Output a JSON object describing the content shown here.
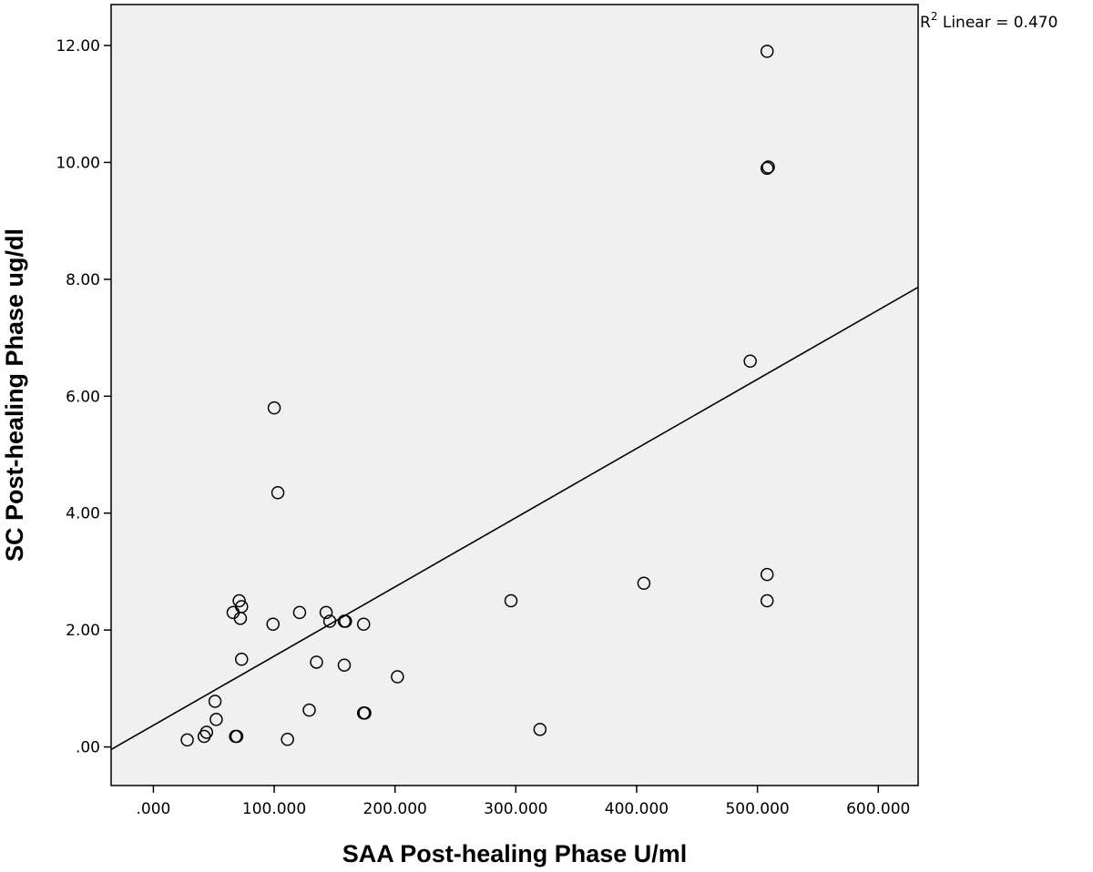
{
  "chart_data": {
    "type": "scatter",
    "title": "",
    "xlabel": "SAA Post-healing Phase U/ml",
    "ylabel": "SC Post-healing Phase ug/dl",
    "xlim": [
      -35,
      633
    ],
    "ylim": [
      -0.66,
      12.7
    ],
    "x_ticks": [
      {
        "value": 0,
        "label": ".000"
      },
      {
        "value": 100,
        "label": "100.000"
      },
      {
        "value": 200,
        "label": "200.000"
      },
      {
        "value": 300,
        "label": "300.000"
      },
      {
        "value": 400,
        "label": "400.000"
      },
      {
        "value": 500,
        "label": "500.000"
      },
      {
        "value": 600,
        "label": "600.000"
      }
    ],
    "y_ticks": [
      {
        "value": 0,
        "label": ".00"
      },
      {
        "value": 2,
        "label": "2.00"
      },
      {
        "value": 4,
        "label": "4.00"
      },
      {
        "value": 6,
        "label": "6.00"
      },
      {
        "value": 8,
        "label": "8.00"
      },
      {
        "value": 10,
        "label": "10.00"
      },
      {
        "value": 12,
        "label": "12.00"
      }
    ],
    "grid": false,
    "plot_background": "#f0f0f0",
    "points": [
      {
        "x": 28,
        "y": 0.12
      },
      {
        "x": 42,
        "y": 0.18
      },
      {
        "x": 44,
        "y": 0.25
      },
      {
        "x": 51,
        "y": 0.78
      },
      {
        "x": 52,
        "y": 0.47
      },
      {
        "x": 66,
        "y": 2.3
      },
      {
        "x": 68,
        "y": 0.18
      },
      {
        "x": 69,
        "y": 0.18
      },
      {
        "x": 71,
        "y": 2.5
      },
      {
        "x": 72,
        "y": 2.2
      },
      {
        "x": 73,
        "y": 2.4
      },
      {
        "x": 73,
        "y": 1.5
      },
      {
        "x": 99,
        "y": 2.1
      },
      {
        "x": 100,
        "y": 5.8
      },
      {
        "x": 103,
        "y": 4.35
      },
      {
        "x": 111,
        "y": 0.13
      },
      {
        "x": 121,
        "y": 2.3
      },
      {
        "x": 129,
        "y": 0.63
      },
      {
        "x": 135,
        "y": 1.45
      },
      {
        "x": 143,
        "y": 2.3
      },
      {
        "x": 146,
        "y": 2.15
      },
      {
        "x": 158,
        "y": 2.15
      },
      {
        "x": 159,
        "y": 2.15
      },
      {
        "x": 158,
        "y": 1.4
      },
      {
        "x": 174,
        "y": 2.1
      },
      {
        "x": 174,
        "y": 0.58
      },
      {
        "x": 175,
        "y": 0.58
      },
      {
        "x": 202,
        "y": 1.2
      },
      {
        "x": 296,
        "y": 2.5
      },
      {
        "x": 320,
        "y": 0.3
      },
      {
        "x": 406,
        "y": 2.8
      },
      {
        "x": 494,
        "y": 6.6
      },
      {
        "x": 508,
        "y": 11.9
      },
      {
        "x": 508,
        "y": 9.9
      },
      {
        "x": 509,
        "y": 9.92
      },
      {
        "x": 508,
        "y": 2.95
      },
      {
        "x": 508,
        "y": 2.5
      }
    ],
    "fit_line": {
      "type": "linear",
      "intercept": 0.37,
      "slope": 0.01184,
      "x_range": [
        -35,
        633
      ],
      "r2_prefix": "R",
      "r2_superscript": "2",
      "r2_text": " Linear = 0.470"
    }
  }
}
